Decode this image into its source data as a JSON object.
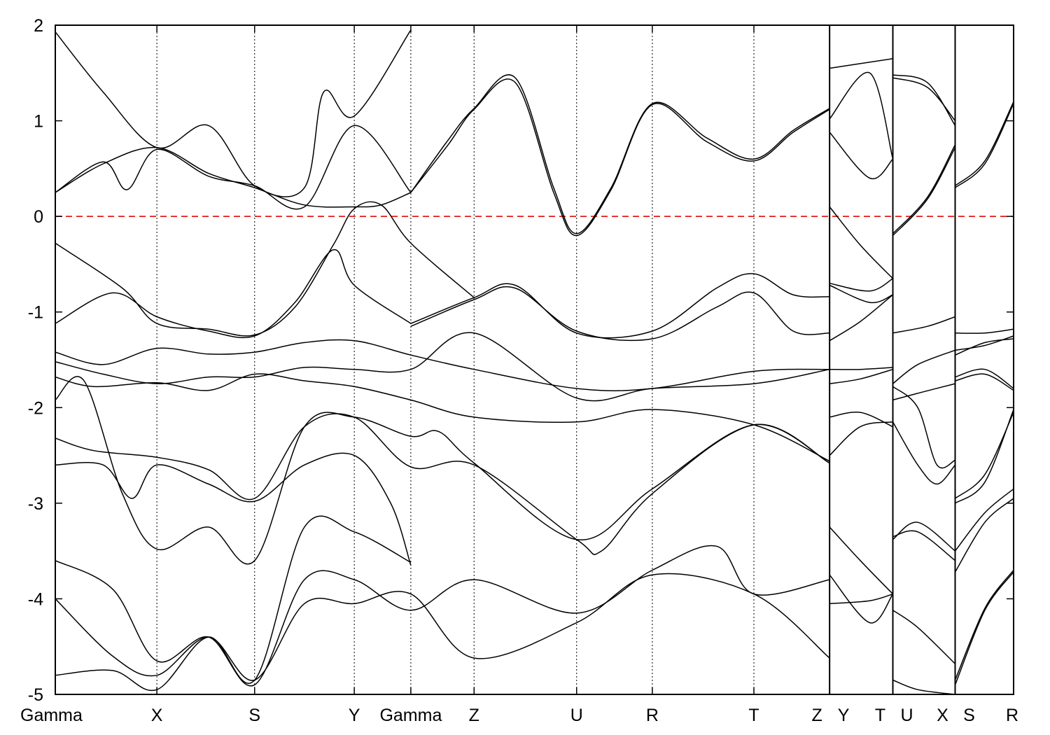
{
  "chart_data": {
    "type": "line",
    "title": "",
    "xlabel": "",
    "ylabel": "",
    "ylim": [
      -5,
      2
    ],
    "yticks": [
      2,
      1,
      0,
      -1,
      -2,
      -3,
      -4,
      -5
    ],
    "ytick_labels": [
      "2",
      "1",
      "0",
      "-1",
      "-2",
      "-3",
      "-4",
      "-5"
    ],
    "grid": false,
    "legend": "none",
    "fermi_level": {
      "value": 0,
      "color": "#e31a1c",
      "style": "dashed"
    },
    "line_color": "#000000",
    "kpath": {
      "labels": [
        "Gamma",
        "X",
        "S",
        "Y",
        "Gamma",
        "Z",
        "U",
        "R",
        "T",
        "Z",
        "Y",
        "T",
        "U",
        "X",
        "S",
        "R"
      ],
      "positions": [
        0,
        1.06,
        2.08,
        3.12,
        3.71,
        4.37,
        5.44,
        6.23,
        7.29,
        8.08,
        8.08,
        8.74,
        8.74,
        9.39,
        9.39,
        10.0
      ],
      "segment_breaks": [
        8.08,
        8.74,
        9.39
      ]
    },
    "series": [
      {
        "x": [
          0,
          0.5,
          1.06,
          1.6,
          2.08,
          2.6,
          3.12,
          3.4,
          3.71
        ],
        "y": [
          0.25,
          0.55,
          0.72,
          0.45,
          0.3,
          0.12,
          0.1,
          0.12,
          0.25
        ]
      },
      {
        "x": [
          0,
          0.5,
          0.75,
          1.06,
          1.6,
          2.08,
          2.6,
          3.12,
          3.71
        ],
        "y": [
          0.25,
          0.57,
          0.28,
          0.7,
          0.42,
          0.32,
          0.1,
          0.95,
          0.25
        ]
      },
      {
        "x": [
          0,
          0.5,
          1.06,
          1.6,
          2.08,
          2.6,
          2.8,
          3.12,
          3.71
        ],
        "y": [
          1.93,
          1.3,
          0.72,
          0.95,
          0.32,
          0.3,
          1.3,
          1.05,
          1.95
        ]
      },
      {
        "x": [
          3.71,
          4.1,
          4.37,
          4.8,
          5.2,
          5.44,
          5.8,
          6.23,
          6.8,
          7.29,
          7.7,
          8.08
        ],
        "y": [
          0.25,
          0.8,
          1.13,
          1.45,
          0.3,
          -0.18,
          0.3,
          1.18,
          0.82,
          0.6,
          0.9,
          1.13
        ]
      },
      {
        "x": [
          3.71,
          4.1,
          4.37,
          4.8,
          5.2,
          5.44,
          5.8,
          6.23,
          6.8,
          7.29,
          7.7,
          8.08
        ],
        "y": [
          0.25,
          0.75,
          1.12,
          1.4,
          0.25,
          -0.2,
          0.28,
          1.17,
          0.78,
          0.58,
          0.88,
          1.12
        ]
      },
      {
        "x": [
          0,
          0.7,
          1.06,
          1.6,
          2.08,
          2.5,
          2.9,
          3.12,
          3.4,
          3.71,
          4.37
        ],
        "y": [
          -0.28,
          -0.75,
          -1.12,
          -1.18,
          -1.24,
          -0.95,
          -0.3,
          0.08,
          0.12,
          -0.28,
          -0.85
        ]
      },
      {
        "x": [
          0,
          0.6,
          1.06,
          1.6,
          2.08,
          2.5,
          2.9,
          3.12,
          3.71
        ],
        "y": [
          -1.12,
          -0.8,
          -1.05,
          -1.2,
          -1.25,
          -0.9,
          -0.35,
          -0.72,
          -1.12
        ]
      },
      {
        "x": [
          3.71,
          4.37,
          4.8,
          5.44,
          6.23,
          6.9,
          7.29,
          7.7,
          8.08
        ],
        "y": [
          -1.12,
          -0.85,
          -0.72,
          -1.22,
          -1.2,
          -0.75,
          -0.6,
          -0.82,
          -0.84
        ]
      },
      {
        "x": [
          3.71,
          4.37,
          4.8,
          5.44,
          6.23,
          6.9,
          7.29,
          7.7,
          8.08
        ],
        "y": [
          -1.15,
          -0.87,
          -0.75,
          -1.2,
          -1.28,
          -0.95,
          -0.8,
          -1.2,
          -1.22
        ]
      },
      {
        "x": [
          0,
          0.5,
          1.06,
          1.6,
          2.08,
          2.6,
          3.12,
          3.71,
          4.37,
          5.44,
          6.23,
          7.29,
          8.08
        ],
        "y": [
          -1.42,
          -1.55,
          -1.38,
          -1.44,
          -1.42,
          -1.32,
          -1.3,
          -1.45,
          -1.6,
          -1.8,
          -1.8,
          -1.62,
          -1.6
        ]
      },
      {
        "x": [
          0,
          0.5,
          1.06,
          1.6,
          2.08,
          2.6,
          3.12,
          3.71,
          4.37,
          5.44,
          6.23,
          7.29,
          8.08
        ],
        "y": [
          -1.52,
          -1.65,
          -1.75,
          -1.68,
          -1.68,
          -1.58,
          -1.6,
          -1.6,
          -1.22,
          -1.9,
          -1.8,
          -1.75,
          -1.6
        ]
      },
      {
        "x": [
          0,
          0.4,
          1.06,
          1.6,
          2.08,
          2.6,
          3.12,
          3.71,
          4.37,
          5.44,
          6.23,
          7.29,
          8.08
        ],
        "y": [
          -1.68,
          -1.78,
          -1.74,
          -1.82,
          -1.65,
          -1.72,
          -1.78,
          -1.92,
          -2.1,
          -2.15,
          -2.02,
          -2.18,
          -2.56
        ]
      },
      {
        "x": [
          0,
          0.3,
          0.7,
          1.06,
          1.6,
          2.08,
          2.6,
          3.12,
          3.71,
          4.0,
          4.37,
          5.44,
          6.23,
          7.29,
          8.08
        ],
        "y": [
          -1.92,
          -1.72,
          -2.9,
          -3.48,
          -3.25,
          -3.6,
          -2.2,
          -2.1,
          -2.3,
          -2.25,
          -2.58,
          -3.38,
          -2.85,
          -2.18,
          -2.58
        ]
      },
      {
        "x": [
          0,
          0.4,
          1.06,
          1.6,
          2.08,
          2.6,
          3.12,
          3.71,
          4.37,
          5.44,
          5.7,
          6.23,
          7.29,
          8.08
        ],
        "y": [
          -2.32,
          -2.45,
          -2.52,
          -2.65,
          -2.95,
          -2.2,
          -2.1,
          -2.62,
          -2.6,
          -3.38,
          -3.5,
          -2.9,
          -2.18,
          -2.58
        ]
      },
      {
        "x": [
          0,
          0.5,
          0.8,
          1.06,
          1.6,
          2.08,
          2.6,
          3.12,
          3.5,
          3.71
        ],
        "y": [
          -2.6,
          -2.6,
          -2.95,
          -2.6,
          -2.8,
          -2.98,
          -2.6,
          -2.5,
          -3.0,
          -3.65
        ]
      },
      {
        "x": [
          0,
          0.6,
          1.06,
          1.6,
          2.08,
          2.6,
          3.12,
          3.71,
          4.37,
          5.44,
          6.23,
          6.9,
          7.29,
          8.08
        ],
        "y": [
          -3.6,
          -3.9,
          -4.65,
          -4.4,
          -4.9,
          -3.8,
          -3.8,
          -4.12,
          -3.8,
          -4.15,
          -3.7,
          -3.45,
          -3.95,
          -3.8
        ]
      },
      {
        "x": [
          0,
          0.6,
          1.06,
          1.6,
          2.08,
          2.6,
          3.12,
          3.71,
          4.37,
          5.44,
          6.23,
          7.29,
          8.08
        ],
        "y": [
          -4.0,
          -4.6,
          -4.8,
          -4.4,
          -4.85,
          -4.05,
          -4.05,
          -3.95,
          -4.62,
          -4.25,
          -3.75,
          -3.95,
          -4.62
        ]
      },
      {
        "x": [
          0,
          0.6,
          1.06,
          1.6,
          2.08,
          2.6,
          3.12,
          3.71
        ],
        "y": [
          -4.8,
          -4.75,
          -4.95,
          -4.4,
          -4.85,
          -3.25,
          -3.3,
          -3.62
        ]
      },
      {
        "x": [
          8.08,
          8.74
        ],
        "y": [
          1.55,
          1.65
        ]
      },
      {
        "x": [
          8.08,
          8.5,
          8.74
        ],
        "y": [
          1.02,
          1.5,
          0.6
        ]
      },
      {
        "x": [
          8.08,
          8.5,
          8.74
        ],
        "y": [
          0.88,
          0.4,
          0.6
        ]
      },
      {
        "x": [
          8.08,
          8.4,
          8.74
        ],
        "y": [
          0.1,
          -0.3,
          -0.65
        ]
      },
      {
        "x": [
          8.08,
          8.5,
          8.74
        ],
        "y": [
          -0.7,
          -0.78,
          -0.65
        ]
      },
      {
        "x": [
          8.08,
          8.5,
          8.74
        ],
        "y": [
          -0.72,
          -0.9,
          -0.82
        ]
      },
      {
        "x": [
          8.08,
          8.4,
          8.74
        ],
        "y": [
          -1.3,
          -1.1,
          -0.82
        ]
      },
      {
        "x": [
          8.08,
          8.4,
          8.74
        ],
        "y": [
          -1.6,
          -1.6,
          -1.58
        ]
      },
      {
        "x": [
          8.08,
          8.4,
          8.74
        ],
        "y": [
          -1.75,
          -1.7,
          -1.6
        ]
      },
      {
        "x": [
          8.08,
          8.4,
          8.74
        ],
        "y": [
          -2.1,
          -2.05,
          -2.2
        ]
      },
      {
        "x": [
          8.08,
          8.4,
          8.74
        ],
        "y": [
          -2.5,
          -2.2,
          -2.15
        ]
      },
      {
        "x": [
          8.08,
          8.4,
          8.74
        ],
        "y": [
          -3.25,
          -3.6,
          -3.95
        ]
      },
      {
        "x": [
          8.08,
          8.5,
          8.74
        ],
        "y": [
          -3.75,
          -4.25,
          -3.95
        ]
      },
      {
        "x": [
          8.08,
          8.5,
          8.74
        ],
        "y": [
          -4.05,
          -4.02,
          -3.95
        ]
      },
      {
        "x": [
          8.74,
          9.1,
          9.39
        ],
        "y": [
          1.48,
          1.4,
          0.95
        ]
      },
      {
        "x": [
          8.74,
          9.1,
          9.39
        ],
        "y": [
          1.45,
          1.35,
          1.0
        ]
      },
      {
        "x": [
          8.74,
          9.1,
          9.39
        ],
        "y": [
          -0.18,
          0.2,
          0.75
        ]
      },
      {
        "x": [
          8.74,
          9.1,
          9.39
        ],
        "y": [
          -0.2,
          0.18,
          0.72
        ]
      },
      {
        "x": [
          8.74,
          9.1,
          9.39
        ],
        "y": [
          -1.22,
          -1.15,
          -1.05
        ]
      },
      {
        "x": [
          8.74,
          9.0,
          9.39
        ],
        "y": [
          -1.75,
          -1.55,
          -1.4
        ]
      },
      {
        "x": [
          8.74,
          9.0,
          9.39
        ],
        "y": [
          -1.92,
          -1.85,
          -1.75
        ]
      },
      {
        "x": [
          8.74,
          9.0,
          9.2,
          9.39
        ],
        "y": [
          -1.78,
          -2.0,
          -2.6,
          -2.55
        ]
      },
      {
        "x": [
          8.74,
          9.0,
          9.2,
          9.39
        ],
        "y": [
          -2.15,
          -2.6,
          -2.8,
          -2.6
        ]
      },
      {
        "x": [
          8.74,
          9.0,
          9.39
        ],
        "y": [
          -3.38,
          -3.2,
          -3.5
        ]
      },
      {
        "x": [
          8.74,
          9.0,
          9.39
        ],
        "y": [
          -3.35,
          -3.3,
          -3.6
        ]
      },
      {
        "x": [
          8.74,
          9.0,
          9.39
        ],
        "y": [
          -4.12,
          -4.3,
          -4.68
        ]
      },
      {
        "x": [
          8.74,
          9.0,
          9.39
        ],
        "y": [
          -4.85,
          -4.95,
          -5.0
        ]
      },
      {
        "x": [
          9.39,
          9.7,
          10.0
        ],
        "y": [
          0.3,
          0.55,
          1.18
        ]
      },
      {
        "x": [
          9.39,
          9.7,
          10.0
        ],
        "y": [
          0.32,
          0.58,
          1.2
        ]
      },
      {
        "x": [
          9.39,
          9.7,
          10.0
        ],
        "y": [
          -1.22,
          -1.22,
          -1.18
        ]
      },
      {
        "x": [
          9.39,
          9.7,
          10.0
        ],
        "y": [
          -1.4,
          -1.35,
          -1.25
        ]
      },
      {
        "x": [
          9.39,
          9.7,
          10.0
        ],
        "y": [
          -1.45,
          -1.32,
          -1.28
        ]
      },
      {
        "x": [
          9.39,
          9.7,
          10.0
        ],
        "y": [
          -1.68,
          -1.6,
          -1.8
        ]
      },
      {
        "x": [
          9.39,
          9.7,
          10.0
        ],
        "y": [
          -1.72,
          -1.65,
          -1.82
        ]
      },
      {
        "x": [
          9.39,
          9.7,
          10.0
        ],
        "y": [
          -2.95,
          -2.7,
          -2.05
        ]
      },
      {
        "x": [
          9.39,
          9.7,
          10.0
        ],
        "y": [
          -3.0,
          -2.78,
          -2.02
        ]
      },
      {
        "x": [
          9.39,
          9.7,
          10.0
        ],
        "y": [
          -3.5,
          -3.1,
          -2.85
        ]
      },
      {
        "x": [
          9.39,
          9.7,
          10.0
        ],
        "y": [
          -3.72,
          -3.2,
          -2.95
        ]
      },
      {
        "x": [
          9.39,
          9.7,
          10.0
        ],
        "y": [
          -4.85,
          -4.1,
          -3.7
        ]
      },
      {
        "x": [
          9.39,
          9.7,
          10.0
        ],
        "y": [
          -4.9,
          -4.12,
          -3.72
        ]
      }
    ]
  }
}
